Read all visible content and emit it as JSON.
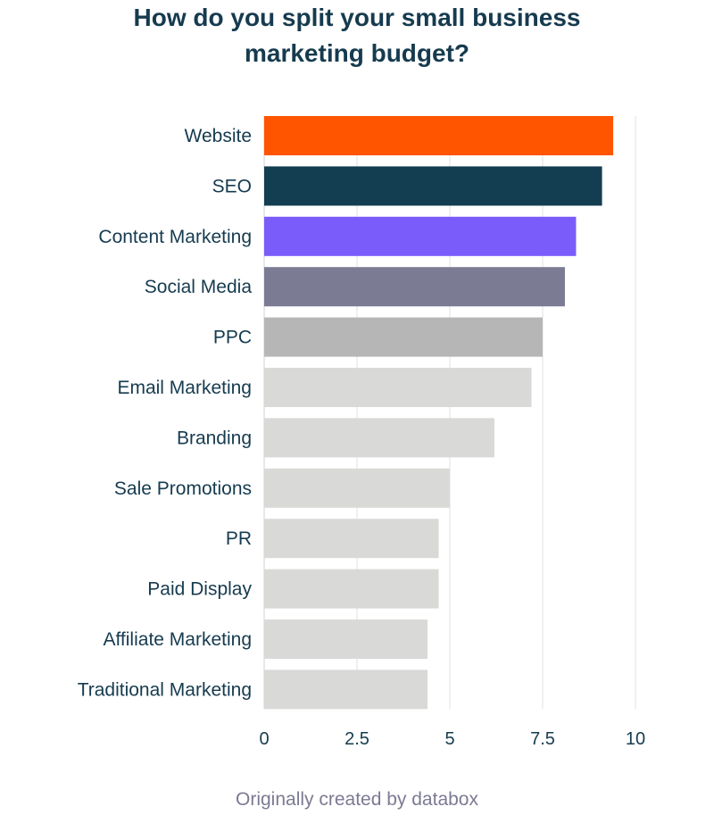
{
  "chart_data": {
    "type": "bar",
    "orientation": "horizontal",
    "title": "How do you split your small business marketing budget?",
    "title_lines": [
      "How do you split your small business",
      "marketing budget?"
    ],
    "xlabel": "",
    "ylabel": "",
    "xlim": [
      0,
      10
    ],
    "xticks": [
      0,
      2.5,
      5,
      7.5,
      10
    ],
    "xtick_labels": [
      "0",
      "2.5",
      "5",
      "7.5",
      "10"
    ],
    "grid": "vertical",
    "categories": [
      "Website",
      "SEO",
      "Content Marketing",
      "Social Media",
      "PPC",
      "Email Marketing",
      "Branding",
      "Sale Promotions",
      "PR",
      "Paid Display",
      "Affiliate Marketing",
      "Traditional Marketing"
    ],
    "values": [
      9.4,
      9.1,
      8.4,
      8.1,
      7.5,
      7.2,
      6.2,
      5.0,
      4.7,
      4.7,
      4.4,
      4.4
    ],
    "colors": [
      "#ff5500",
      "#133d50",
      "#7a5cfa",
      "#7b7b93",
      "#b6b6b6",
      "#d9d9d7",
      "#d9d9d7",
      "#d9d9d7",
      "#d9d9d7",
      "#d9d9d7",
      "#d9d9d7",
      "#d9d9d7"
    ]
  },
  "footer": {
    "text": "Originally created by databox"
  }
}
